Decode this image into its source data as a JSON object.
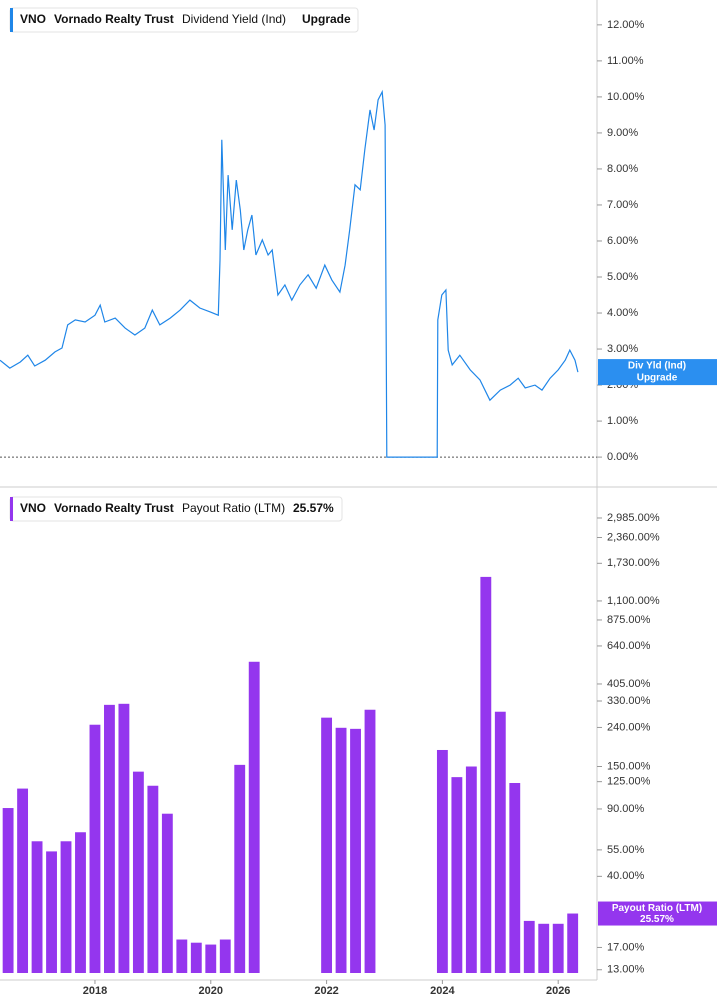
{
  "chart_data": [
    {
      "type": "line",
      "ticker": "VNO",
      "company": "Vornado Realty Trust",
      "metric": "Dividend Yield (Ind)",
      "status": "Upgrade",
      "badge_title": "Div Yld (Ind)",
      "color": "#1f86e8",
      "x": [
        2016.36,
        2016.53,
        2016.71,
        2016.84,
        2016.96,
        2017.14,
        2017.31,
        2017.43,
        2017.53,
        2017.66,
        2017.83,
        2018.0,
        2018.09,
        2018.17,
        2018.35,
        2018.52,
        2018.69,
        2018.86,
        2018.99,
        2019.12,
        2019.3,
        2019.47,
        2019.64,
        2019.81,
        2019.99,
        2020.13,
        2020.16,
        2020.19,
        2020.25,
        2020.3,
        2020.37,
        2020.44,
        2020.51,
        2020.57,
        2020.64,
        2020.71,
        2020.78,
        2020.89,
        2020.99,
        2021.06,
        2021.16,
        2021.28,
        2021.4,
        2021.54,
        2021.68,
        2021.82,
        2021.97,
        2022.09,
        2022.23,
        2022.32,
        2022.4,
        2022.49,
        2022.58,
        2022.66,
        2022.75,
        2022.82,
        2022.89,
        2022.96,
        2023.01,
        2023.04,
        2023.91,
        2023.92,
        2023.99,
        2024.06,
        2024.1,
        2024.17,
        2024.3,
        2024.48,
        2024.65,
        2024.82,
        2025.0,
        2025.17,
        2025.31,
        2025.43,
        2025.6,
        2025.72,
        2025.86,
        2026.0,
        2026.12,
        2026.2,
        2026.29,
        2026.34
      ],
      "values": [
        2.69,
        2.47,
        2.64,
        2.83,
        2.53,
        2.69,
        2.92,
        3.03,
        3.67,
        3.81,
        3.75,
        3.94,
        4.22,
        3.75,
        3.86,
        3.58,
        3.39,
        3.58,
        4.08,
        3.67,
        3.86,
        4.08,
        4.36,
        4.14,
        4.03,
        3.94,
        5.47,
        8.81,
        5.75,
        7.83,
        6.31,
        7.69,
        6.86,
        5.75,
        6.31,
        6.72,
        5.61,
        6.03,
        5.61,
        5.75,
        4.5,
        4.78,
        4.36,
        4.78,
        5.06,
        4.69,
        5.33,
        4.92,
        4.58,
        5.33,
        6.31,
        7.56,
        7.42,
        8.53,
        9.64,
        9.08,
        9.92,
        10.14,
        9.22,
        0,
        0,
        3.81,
        4.5,
        4.64,
        2.97,
        2.56,
        2.83,
        2.42,
        2.14,
        1.58,
        1.86,
        2.0,
        2.19,
        1.92,
        2.0,
        1.86,
        2.19,
        2.42,
        2.69,
        2.97,
        2.69,
        2.36
      ],
      "xlim": [
        2016.36,
        2026.67
      ],
      "ylim": [
        -0.83,
        12.69
      ],
      "yticks": [
        {
          "value": 0,
          "label": "0.00%"
        },
        {
          "value": 1,
          "label": "1.00%"
        },
        {
          "value": 2,
          "label": "2.00%"
        },
        {
          "value": 3,
          "label": "3.00%"
        },
        {
          "value": 4,
          "label": "4.00%"
        },
        {
          "value": 5,
          "label": "5.00%"
        },
        {
          "value": 6,
          "label": "6.00%"
        },
        {
          "value": 7,
          "label": "7.00%"
        },
        {
          "value": 8,
          "label": "8.00%"
        },
        {
          "value": 9,
          "label": "9.00%"
        },
        {
          "value": 10,
          "label": "10.00%"
        },
        {
          "value": 11,
          "label": "11.00%"
        },
        {
          "value": 12,
          "label": "12.00%"
        }
      ],
      "zero_line": true
    },
    {
      "type": "bar",
      "ticker": "VNO",
      "company": "Vornado Realty Trust",
      "metric": "Payout Ratio (LTM)",
      "current": {
        "value": 25.57,
        "label": "25.57%"
      },
      "badge_title": "Payout Ratio (LTM)",
      "color": "#9436ee",
      "log_scale": true,
      "x": [
        2016.5,
        2016.75,
        2017.0,
        2017.25,
        2017.5,
        2017.75,
        2018.0,
        2018.25,
        2018.5,
        2018.75,
        2019.0,
        2019.25,
        2019.5,
        2019.75,
        2020.0,
        2020.25,
        2020.5,
        2020.75,
        2021.0,
        2021.25,
        2021.5,
        2021.75,
        2022.0,
        2022.25,
        2022.5,
        2022.75,
        2023.0,
        2023.25,
        2023.5,
        2023.75,
        2024.0,
        2024.25,
        2024.5,
        2024.75,
        2025.0,
        2025.25,
        2025.5,
        2025.75,
        2026.0,
        2026.25
      ],
      "values": [
        91,
        115,
        61,
        54,
        61,
        68,
        248,
        315,
        319,
        141,
        119,
        85,
        18.7,
        18,
        17.6,
        18.7,
        153,
        529,
        null,
        null,
        null,
        null,
        270,
        239,
        236,
        297,
        null,
        null,
        null,
        null,
        183,
        132,
        150,
        1469,
        290,
        123,
        23.4,
        22.6,
        22.6,
        25.57
      ],
      "xlim": [
        2016.36,
        2026.67
      ],
      "ylim": [
        12.5,
        4180
      ],
      "xticks": [
        2018,
        2020,
        2022,
        2024,
        2026
      ],
      "yticks": [
        {
          "value": 13,
          "label": "13.00%"
        },
        {
          "value": 17,
          "label": "17.00%"
        },
        {
          "value": 40,
          "label": "40.00%"
        },
        {
          "value": 55,
          "label": "55.00%"
        },
        {
          "value": 90,
          "label": "90.00%"
        },
        {
          "value": 125,
          "label": "125.00%"
        },
        {
          "value": 150,
          "label": "150.00%"
        },
        {
          "value": 240,
          "label": "240.00%"
        },
        {
          "value": 330,
          "label": "330.00%"
        },
        {
          "value": 405,
          "label": "405.00%"
        },
        {
          "value": 640,
          "label": "640.00%"
        },
        {
          "value": 875,
          "label": "875.00%"
        },
        {
          "value": 1100,
          "label": "1,100.00%"
        },
        {
          "value": 1730,
          "label": "1,730.00%"
        },
        {
          "value": 2360,
          "label": "2,360.00%"
        },
        {
          "value": 2985,
          "label": "2,985.00%"
        }
      ]
    }
  ]
}
